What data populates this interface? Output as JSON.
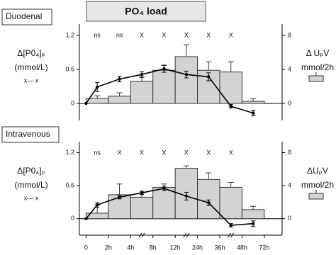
{
  "title": "PO₄ load",
  "chart_data": [
    {
      "type": "bar_line",
      "panel": "Duodenal",
      "ylabel": [
        "Δ[P0₄]ₚ",
        "(mmol/L)"
      ],
      "line_legend": "x— x",
      "y2label": [
        "Δ UₚV",
        "mmol/2h"
      ],
      "ylim": [
        -0.3,
        1.4
      ],
      "yticks": [
        0,
        0.6,
        1.2
      ],
      "y2lim": [
        -2,
        9.33
      ],
      "y2ticks": [
        0,
        4,
        8
      ],
      "xlim": [
        -0.3,
        8.8
      ],
      "bins": [
        0,
        1,
        2,
        3,
        4,
        5,
        6,
        7,
        8
      ],
      "bars": {
        "color": "#d3d3d3",
        "values": [
          0.6,
          0.85,
          2.6,
          3.9,
          5.5,
          3.9,
          3.7,
          0.25
        ],
        "errors": [
          0.3,
          0.4,
          0.5,
          0.6,
          1.4,
          1.0,
          1.2,
          0.3
        ]
      },
      "line": {
        "color": "#000000",
        "x": [
          0,
          0.5,
          1.5,
          2.5,
          3.5,
          4.5,
          5.5,
          6.5,
          7.5
        ],
        "values": [
          0,
          0.29,
          0.43,
          0.51,
          0.61,
          0.51,
          0.47,
          -0.05,
          -0.17
        ],
        "errors": [
          0,
          0.08,
          0.05,
          0.05,
          0.06,
          0.06,
          0.07,
          0.03,
          0.05
        ]
      },
      "significance": [
        "ns",
        "ns",
        "X",
        "X",
        "X",
        "X",
        "X",
        null
      ]
    },
    {
      "type": "bar_line",
      "panel": "Intravenous",
      "ylabel": [
        "Δ[P0₄]ₚ",
        "(mmol/L)"
      ],
      "line_legend": "x— x",
      "y2label": [
        "ΔUₚV",
        "mmol/2h"
      ],
      "ylim": [
        -0.3,
        1.4
      ],
      "yticks": [
        0,
        0.6,
        1.2
      ],
      "y2lim": [
        -2,
        9.33
      ],
      "y2ticks": [
        0,
        4,
        8
      ],
      "xlim": [
        -0.3,
        8.8
      ],
      "xticks": [
        {
          "value": 0,
          "label": "0"
        },
        {
          "value": 1,
          "label": "2h"
        },
        {
          "value": 2,
          "label": "4h"
        },
        {
          "value": 3,
          "label": "8h"
        },
        {
          "value": 4,
          "label": "12h"
        },
        {
          "value": 5,
          "label": "24h"
        },
        {
          "value": 6,
          "label": "36h"
        },
        {
          "value": 7,
          "label": "48h"
        },
        {
          "value": 8,
          "label": "72h"
        }
      ],
      "bins": [
        0,
        1,
        2,
        3,
        4,
        5,
        6,
        7,
        8
      ],
      "bars": {
        "color": "#d3d3d3",
        "values": [
          0.67,
          2.9,
          2.6,
          3.8,
          6.1,
          4.75,
          3.8,
          1.1
        ],
        "errors": [
          1.0,
          1.3,
          0.5,
          0.4,
          0.3,
          0.8,
          0.6,
          0.4
        ]
      },
      "line": {
        "color": "#000000",
        "x": [
          0,
          0.5,
          1.5,
          2.5,
          3.5,
          4.5,
          5.5,
          6.5,
          7.5
        ],
        "values": [
          0,
          0.25,
          0.39,
          0.47,
          0.55,
          0.41,
          0.29,
          -0.12,
          -0.09
        ],
        "errors": [
          0,
          0.04,
          0.03,
          0.03,
          0.04,
          0.07,
          0.05,
          0.03,
          0.05
        ]
      },
      "significance": [
        "ns",
        "X",
        "X",
        "X",
        "X",
        "X",
        "X",
        null
      ]
    }
  ]
}
